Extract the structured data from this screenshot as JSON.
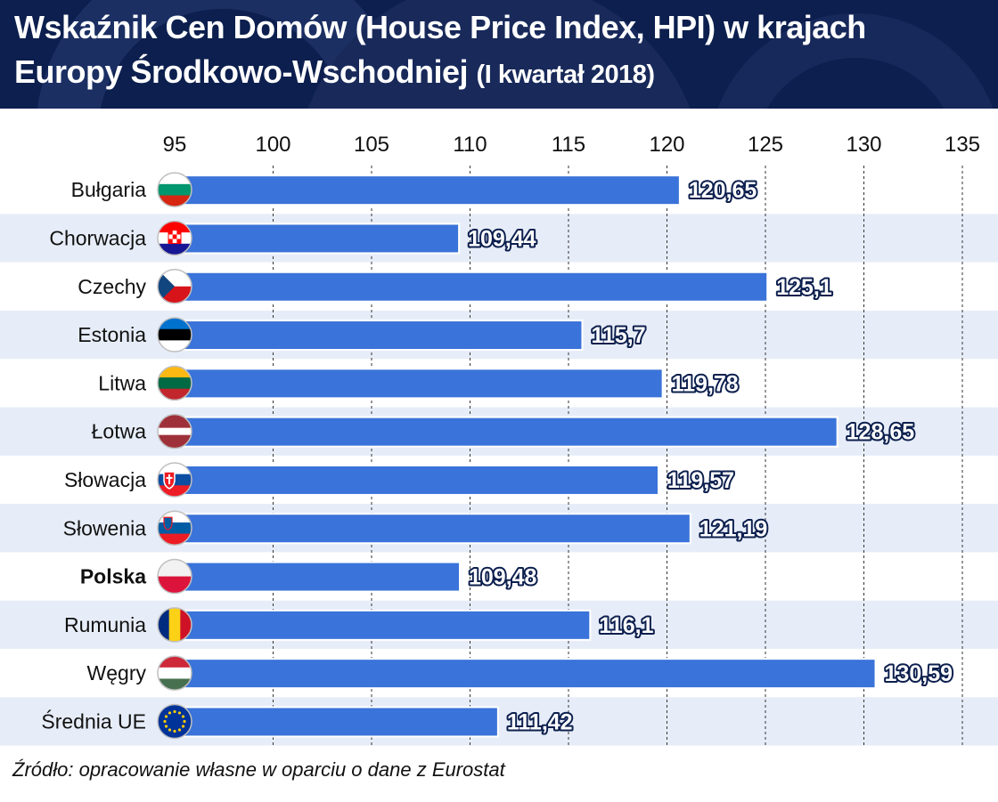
{
  "header": {
    "title_line1": "Wskaźnik Cen Domów (House Price Index, HPI) w krajach",
    "title_line2": "Europy Środkowo-Wschodniej",
    "title_suffix": "(I kwartał 2018)"
  },
  "colors": {
    "header_bg": "#0c1f4e",
    "bar": "#3a73d9",
    "stripe": "#e7edf8",
    "label_outline": "#0c1f4e"
  },
  "chart_data": {
    "type": "bar",
    "orientation": "horizontal",
    "xlim": [
      95,
      135
    ],
    "ticks": [
      95,
      100,
      105,
      110,
      115,
      120,
      125,
      130,
      135
    ],
    "grid": "vertical dashed",
    "categories": [
      "Bułgaria",
      "Chorwacja",
      "Czechy",
      "Estonia",
      "Litwa",
      "Łotwa",
      "Słowacja",
      "Słowenia",
      "Polska",
      "Rumunia",
      "Węgry",
      "Średnia UE"
    ],
    "values": [
      120.65,
      109.44,
      125.1,
      115.7,
      119.78,
      128.65,
      119.57,
      121.19,
      109.48,
      116.1,
      130.59,
      111.42
    ],
    "value_labels": [
      "120,65",
      "109,44",
      "125,1",
      "115,7",
      "119,78",
      "128,65",
      "119,57",
      "121,19",
      "109,48",
      "116,1",
      "130,59",
      "111,42"
    ],
    "highlight": "Polska",
    "flags": [
      "flag-bulgaria-icon",
      "flag-croatia-icon",
      "flag-czechia-icon",
      "flag-estonia-icon",
      "flag-lithuania-icon",
      "flag-latvia-icon",
      "flag-slovakia-icon",
      "flag-slovenia-icon",
      "flag-poland-icon",
      "flag-romania-icon",
      "flag-hungary-icon",
      "flag-eu-icon"
    ]
  },
  "footer": {
    "source": "Źródło: opracowanie własne w oparciu o dane z Eurostat"
  }
}
